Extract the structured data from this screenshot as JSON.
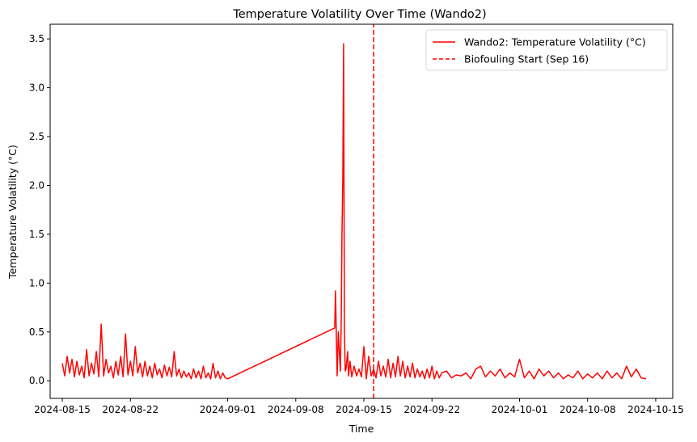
{
  "chart_data": {
    "type": "line",
    "title": "Temperature Volatility Over Time (Wando2)",
    "xlabel": "Time",
    "ylabel": "Temperature Volatility (°C)",
    "x_axis_type": "date",
    "xlim": [
      "2024-08-13T18:00",
      "2024-10-16T18:00"
    ],
    "ylim": [
      -0.18,
      3.65
    ],
    "x_ticks": [
      "2024-08-15",
      "2024-08-22",
      "2024-09-01",
      "2024-09-08",
      "2024-09-15",
      "2024-09-22",
      "2024-10-01",
      "2024-10-08",
      "2024-10-15"
    ],
    "y_ticks": [
      0.0,
      0.5,
      1.0,
      1.5,
      2.0,
      2.5,
      3.0,
      3.5
    ],
    "y_tick_labels": [
      "0.0",
      "0.5",
      "1.0",
      "1.5",
      "2.0",
      "2.5",
      "3.0",
      "3.5"
    ],
    "grid": false,
    "legend_position": "top-right",
    "series": [
      {
        "name": "Wando2: Temperature Volatility (°C)",
        "color": "#ff0000",
        "line_style": "solid",
        "x": [
          "2024-08-15T00:00",
          "2024-08-15T06:00",
          "2024-08-15T12:00",
          "2024-08-15T18:00",
          "2024-08-16T00:00",
          "2024-08-16T06:00",
          "2024-08-16T12:00",
          "2024-08-16T18:00",
          "2024-08-17T00:00",
          "2024-08-17T06:00",
          "2024-08-17T12:00",
          "2024-08-17T18:00",
          "2024-08-18T00:00",
          "2024-08-18T06:00",
          "2024-08-18T12:00",
          "2024-08-18T18:00",
          "2024-08-19T00:00",
          "2024-08-19T06:00",
          "2024-08-19T12:00",
          "2024-08-19T18:00",
          "2024-08-20T00:00",
          "2024-08-20T06:00",
          "2024-08-20T12:00",
          "2024-08-20T18:00",
          "2024-08-21T00:00",
          "2024-08-21T06:00",
          "2024-08-21T12:00",
          "2024-08-21T18:00",
          "2024-08-22T00:00",
          "2024-08-22T06:00",
          "2024-08-22T12:00",
          "2024-08-22T18:00",
          "2024-08-23T00:00",
          "2024-08-23T06:00",
          "2024-08-23T12:00",
          "2024-08-23T18:00",
          "2024-08-24T00:00",
          "2024-08-24T06:00",
          "2024-08-24T12:00",
          "2024-08-24T18:00",
          "2024-08-25T00:00",
          "2024-08-25T06:00",
          "2024-08-25T12:00",
          "2024-08-25T18:00",
          "2024-08-26T00:00",
          "2024-08-26T06:00",
          "2024-08-26T12:00",
          "2024-08-26T18:00",
          "2024-08-27T00:00",
          "2024-08-27T06:00",
          "2024-08-27T12:00",
          "2024-08-27T18:00",
          "2024-08-28T00:00",
          "2024-08-28T06:00",
          "2024-08-28T12:00",
          "2024-08-28T18:00",
          "2024-08-29T00:00",
          "2024-08-29T06:00",
          "2024-08-29T12:00",
          "2024-08-29T18:00",
          "2024-08-30T00:00",
          "2024-08-30T06:00",
          "2024-08-30T12:00",
          "2024-08-30T18:00",
          "2024-08-31T00:00",
          "2024-08-31T06:00",
          "2024-08-31T12:00",
          "2024-08-31T18:00",
          "2024-09-01T00:00",
          "2024-09-12T00:00",
          "2024-09-12T02:00",
          "2024-09-12T06:00",
          "2024-09-12T09:00",
          "2024-09-12T14:00",
          "2024-09-12T16:00",
          "2024-09-12T18:00",
          "2024-09-12T20:00",
          "2024-09-12T22:00",
          "2024-09-13T00:00",
          "2024-09-13T02:00",
          "2024-09-13T04:00",
          "2024-09-13T08:00",
          "2024-09-13T10:00",
          "2024-09-13T14:00",
          "2024-09-13T18:00",
          "2024-09-14T00:00",
          "2024-09-14T06:00",
          "2024-09-14T12:00",
          "2024-09-14T18:00",
          "2024-09-15T00:00",
          "2024-09-15T06:00",
          "2024-09-15T12:00",
          "2024-09-15T18:00",
          "2024-09-16T00:00",
          "2024-09-16T06:00",
          "2024-09-16T12:00",
          "2024-09-16T18:00",
          "2024-09-17T00:00",
          "2024-09-17T06:00",
          "2024-09-17T12:00",
          "2024-09-17T18:00",
          "2024-09-18T00:00",
          "2024-09-18T06:00",
          "2024-09-18T12:00",
          "2024-09-18T18:00",
          "2024-09-19T00:00",
          "2024-09-19T06:00",
          "2024-09-19T12:00",
          "2024-09-19T18:00",
          "2024-09-20T00:00",
          "2024-09-20T06:00",
          "2024-09-20T12:00",
          "2024-09-20T18:00",
          "2024-09-21T00:00",
          "2024-09-21T06:00",
          "2024-09-21T12:00",
          "2024-09-21T18:00",
          "2024-09-22T00:00",
          "2024-09-22T06:00",
          "2024-09-22T12:00",
          "2024-09-22T18:00",
          "2024-09-23T00:00",
          "2024-09-23T12:00",
          "2024-09-24T00:00",
          "2024-09-24T12:00",
          "2024-09-25T00:00",
          "2024-09-25T12:00",
          "2024-09-26T00:00",
          "2024-09-26T12:00",
          "2024-09-27T00:00",
          "2024-09-27T12:00",
          "2024-09-28T00:00",
          "2024-09-28T12:00",
          "2024-09-29T00:00",
          "2024-09-29T12:00",
          "2024-09-30T00:00",
          "2024-09-30T12:00",
          "2024-10-01T00:00",
          "2024-10-01T12:00",
          "2024-10-02T00:00",
          "2024-10-02T12:00",
          "2024-10-03T00:00",
          "2024-10-03T12:00",
          "2024-10-04T00:00",
          "2024-10-04T12:00",
          "2024-10-05T00:00",
          "2024-10-05T12:00",
          "2024-10-06T00:00",
          "2024-10-06T12:00",
          "2024-10-07T00:00",
          "2024-10-07T12:00",
          "2024-10-08T00:00",
          "2024-10-08T12:00",
          "2024-10-09T00:00",
          "2024-10-09T12:00",
          "2024-10-10T00:00",
          "2024-10-10T12:00",
          "2024-10-11T00:00",
          "2024-10-11T12:00",
          "2024-10-12T00:00",
          "2024-10-12T12:00",
          "2024-10-13T00:00",
          "2024-10-13T12:00",
          "2024-10-14T00:00"
        ],
        "y": [
          0.18,
          0.05,
          0.25,
          0.08,
          0.22,
          0.04,
          0.2,
          0.06,
          0.15,
          0.03,
          0.32,
          0.05,
          0.18,
          0.07,
          0.3,
          0.04,
          0.58,
          0.05,
          0.22,
          0.08,
          0.15,
          0.03,
          0.2,
          0.06,
          0.25,
          0.04,
          0.48,
          0.06,
          0.2,
          0.05,
          0.35,
          0.08,
          0.18,
          0.04,
          0.2,
          0.05,
          0.15,
          0.03,
          0.18,
          0.06,
          0.12,
          0.03,
          0.16,
          0.05,
          0.14,
          0.04,
          0.3,
          0.05,
          0.12,
          0.03,
          0.1,
          0.04,
          0.08,
          0.02,
          0.12,
          0.03,
          0.1,
          0.02,
          0.15,
          0.03,
          0.08,
          0.02,
          0.18,
          0.03,
          0.1,
          0.02,
          0.08,
          0.03,
          0.02,
          0.54,
          0.92,
          0.05,
          0.5,
          0.1,
          0.55,
          1.5,
          2.05,
          3.45,
          0.5,
          0.1,
          0.12,
          0.3,
          0.05,
          0.2,
          0.04,
          0.15,
          0.05,
          0.12,
          0.04,
          0.35,
          0.02,
          0.25,
          0.05,
          0.12,
          0.03,
          0.2,
          0.05,
          0.15,
          0.04,
          0.22,
          0.03,
          0.18,
          0.04,
          0.25,
          0.05,
          0.2,
          0.03,
          0.15,
          0.04,
          0.18,
          0.03,
          0.12,
          0.04,
          0.1,
          0.02,
          0.12,
          0.03,
          0.15,
          0.02,
          0.1,
          0.03,
          0.08,
          0.1,
          0.03,
          0.06,
          0.05,
          0.08,
          0.02,
          0.12,
          0.15,
          0.04,
          0.1,
          0.05,
          0.12,
          0.03,
          0.08,
          0.04,
          0.22,
          0.03,
          0.1,
          0.02,
          0.12,
          0.05,
          0.1,
          0.03,
          0.08,
          0.02,
          0.06,
          0.03,
          0.1,
          0.02,
          0.07,
          0.03,
          0.08,
          0.02,
          0.1,
          0.03,
          0.08,
          0.02,
          0.15,
          0.04,
          0.12,
          0.03,
          0.02
        ]
      },
      {
        "name": "Biofouling Start (Sep 16)",
        "color": "#ff0000",
        "line_style": "dashed",
        "x": [
          "2024-09-16T00:00",
          "2024-09-16T00:00"
        ],
        "y": [
          -0.18,
          3.65
        ]
      }
    ]
  }
}
